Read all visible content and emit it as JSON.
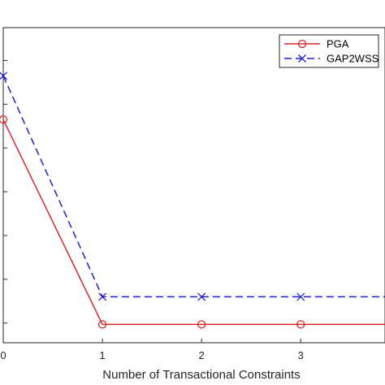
{
  "chart_data": {
    "type": "line",
    "title": "",
    "xlabel": "Number of Transactional Constraints",
    "ylabel": "",
    "x": [
      0,
      1,
      2,
      3,
      4
    ],
    "x_ticks": [
      0,
      1,
      2,
      3
    ],
    "x_tick_labels": [
      "0",
      "1",
      "2",
      "3"
    ],
    "xlim": [
      0,
      3.85
    ],
    "y_ticks": [
      1,
      2,
      3,
      4,
      5,
      6,
      7
    ],
    "ylim": [
      0.55,
      7.75
    ],
    "grid": false,
    "legend_position": "top-right",
    "series": [
      {
        "name": "PGA",
        "values": [
          5.65,
          0.97,
          0.97,
          0.97,
          0.97
        ],
        "color": "#d62728",
        "dash": "solid",
        "marker": "circle"
      },
      {
        "name": "GAP2WSS",
        "values": [
          6.65,
          1.6,
          1.6,
          1.6,
          1.6
        ],
        "color": "#1f1fcc",
        "dash": "dashed",
        "marker": "x"
      }
    ]
  }
}
